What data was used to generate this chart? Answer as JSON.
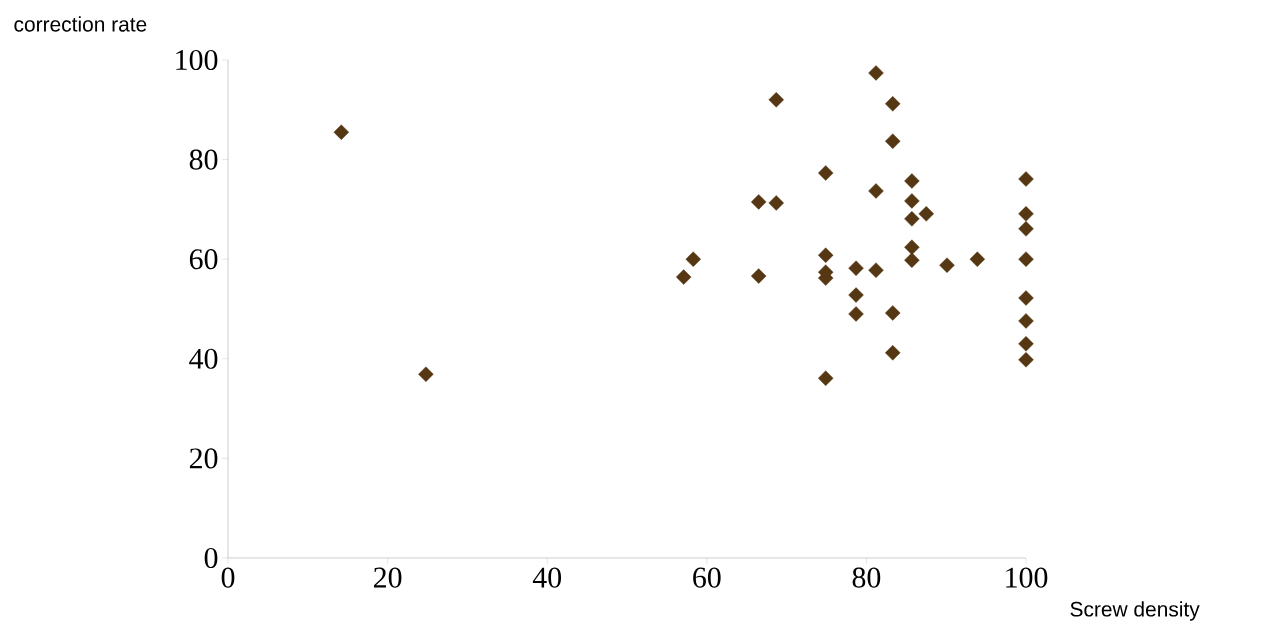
{
  "chart_data": {
    "type": "scatter",
    "xlabel": "Screw density",
    "ylabel": "correction rate",
    "x": [
      14.2,
      24.8,
      57.1,
      58.3,
      66.5,
      66.5,
      68.7,
      68.7,
      74.9,
      74.9,
      74.9,
      74.9,
      74.9,
      78.7,
      78.7,
      78.7,
      81.2,
      81.2,
      81.2,
      83.3,
      83.3,
      83.3,
      83.3,
      85.7,
      85.7,
      85.7,
      87.5,
      85.7,
      85.7,
      90.1,
      93.9,
      100,
      100,
      100,
      100,
      100,
      100,
      100,
      100
    ],
    "values": [
      85.5,
      36.9,
      56.4,
      60.0,
      56.6,
      71.5,
      71.3,
      92.0,
      77.3,
      60.8,
      57.4,
      56.2,
      36.1,
      58.2,
      52.8,
      49.0,
      97.4,
      73.7,
      57.8,
      91.2,
      83.7,
      49.2,
      41.2,
      75.7,
      71.7,
      68.1,
      69.1,
      62.4,
      59.8,
      58.8,
      60.0,
      76.1,
      69.1,
      66.1,
      60.0,
      52.2,
      47.6,
      43.0,
      39.8
    ],
    "color": "#553813",
    "marker": "diamond",
    "xlim": [
      0,
      100
    ],
    "ylim": [
      0,
      100
    ],
    "xticks": [
      0,
      20,
      40,
      60,
      80,
      100
    ],
    "yticks": [
      0,
      20,
      40,
      60,
      80,
      100
    ]
  }
}
